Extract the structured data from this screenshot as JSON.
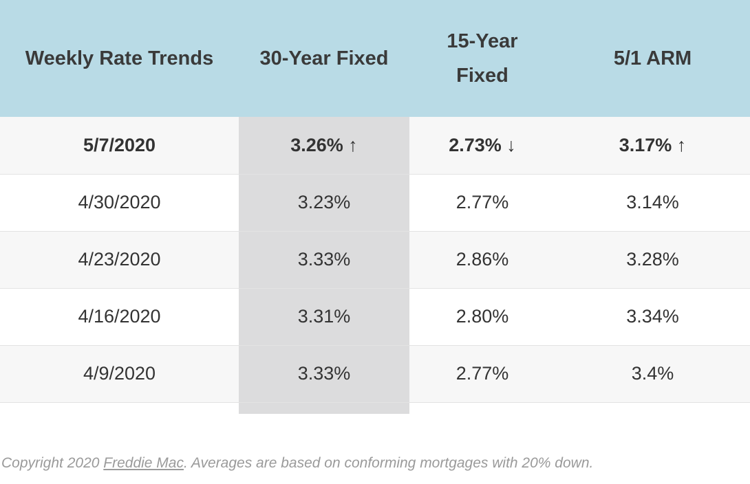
{
  "table": {
    "headers": [
      "Weekly Rate Trends",
      "30-Year Fixed",
      "15-Year Fixed",
      "5/1 ARM"
    ],
    "rows": [
      {
        "date": "5/7/2020",
        "fixed30": "3.26% ↑",
        "fixed15": "2.73% ↓",
        "arm51": "3.17% ↑"
      },
      {
        "date": "4/30/2020",
        "fixed30": "3.23%",
        "fixed15": "2.77%",
        "arm51": "3.14%"
      },
      {
        "date": "4/23/2020",
        "fixed30": "3.33%",
        "fixed15": "2.86%",
        "arm51": "3.28%"
      },
      {
        "date": "4/16/2020",
        "fixed30": "3.31%",
        "fixed15": "2.80%",
        "arm51": "3.34%"
      },
      {
        "date": "4/9/2020",
        "fixed30": "3.33%",
        "fixed15": "2.77%",
        "arm51": "3.4%"
      }
    ]
  },
  "footer": {
    "prefix": "Copyright 2020 ",
    "link_text": "Freddie Mac",
    "suffix": ". Averages are based on conforming mortgages with 20% down."
  },
  "colors": {
    "header_bg": "#b9dbe6",
    "highlight_column": "#dcdcdd",
    "shaded_row": "#f7f7f7"
  }
}
